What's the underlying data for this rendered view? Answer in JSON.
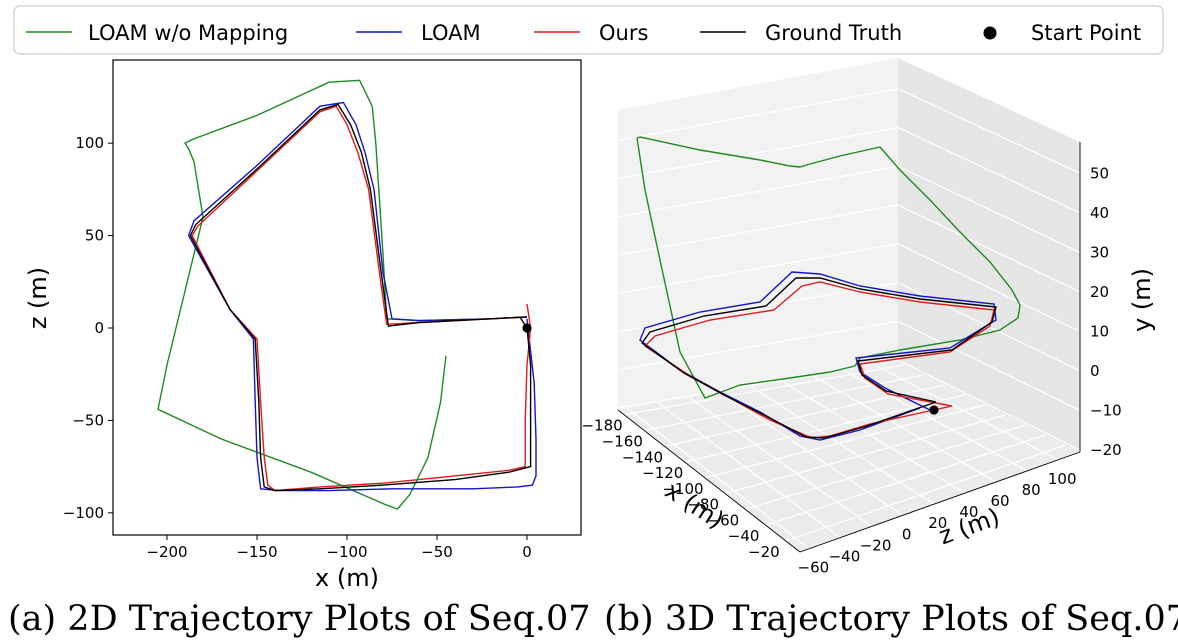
{
  "legend": [
    {
      "label": "LOAM w/o Mapping",
      "color": "#1f8a1f",
      "kind": "line"
    },
    {
      "label": "LOAM",
      "color": "#1515c8",
      "kind": "line"
    },
    {
      "label": "Ours",
      "color": "#e01b1b",
      "kind": "line"
    },
    {
      "label": "Ground Truth",
      "color": "#000000",
      "kind": "line"
    },
    {
      "label": "Start Point",
      "color": "#000000",
      "kind": "marker"
    }
  ],
  "captions": {
    "a": "(a)  2D Trajectory Plots of Seq.07",
    "b": "(b)  3D Trajectory Plots of Seq.07"
  },
  "chart_data": [
    {
      "type": "line",
      "xlabel": "x (m)",
      "ylabel": "z (m)",
      "xlim": [
        -230,
        30
      ],
      "ylim": [
        -112,
        145
      ],
      "xticks": [
        -200,
        -150,
        -100,
        -50,
        0
      ],
      "yticks": [
        -100,
        -50,
        0,
        50,
        100
      ],
      "series": [
        {
          "name": "LOAM w/o Mapping",
          "color": "#1f8a1f",
          "x": [
            -45,
            -48,
            -55,
            -65,
            -72,
            -80,
            -120,
            -170,
            -205,
            -200,
            -190,
            -180,
            -185,
            -188,
            -190,
            -186,
            -150,
            -110,
            -93,
            -86,
            -84,
            -82,
            -80,
            -78,
            -60,
            -20,
            -2
          ],
          "y": [
            -15,
            -40,
            -70,
            -90,
            -98,
            -95,
            -78,
            -60,
            -44,
            -20,
            20,
            60,
            90,
            97,
            100,
            102,
            115,
            133,
            134,
            120,
            100,
            70,
            40,
            5,
            4,
            5,
            6
          ]
        },
        {
          "name": "LOAM",
          "color": "#1515c8",
          "x": [
            0,
            4,
            5,
            5,
            3,
            -5,
            -30,
            -75,
            -110,
            -138,
            -148,
            -150,
            -151,
            -152,
            -165,
            -188,
            -185,
            -150,
            -115,
            -102,
            -95,
            -90,
            -85,
            -80,
            -75,
            -60,
            -20,
            0
          ],
          "y": [
            5,
            -30,
            -60,
            -80,
            -85,
            -86,
            -87,
            -87,
            -88,
            -88,
            -87,
            -70,
            -40,
            -6,
            10,
            50,
            58,
            88,
            120,
            122,
            110,
            95,
            75,
            30,
            5,
            4,
            5,
            6
          ]
        },
        {
          "name": "Ours",
          "color": "#e01b1b",
          "x": [
            0,
            2,
            0,
            -1,
            -1,
            -10,
            -40,
            -80,
            -115,
            -140,
            -144,
            -146,
            -148,
            -150,
            -165,
            -186,
            -183,
            -150,
            -115,
            -106,
            -100,
            -94,
            -88,
            -82,
            -78,
            -60,
            -20,
            0
          ],
          "y": [
            13,
            0,
            -20,
            -50,
            -75,
            -77,
            -80,
            -84,
            -86,
            -88,
            -85,
            -70,
            -40,
            -6,
            10,
            50,
            55,
            85,
            117,
            120,
            110,
            95,
            75,
            30,
            2,
            3,
            5,
            6
          ]
        },
        {
          "name": "Ground Truth",
          "color": "#000000",
          "x": [
            -4,
            0,
            2,
            2,
            2,
            -10,
            -40,
            -80,
            -115,
            -140,
            -146,
            -148,
            -149,
            -151,
            -165,
            -187,
            -184,
            -150,
            -115,
            -105,
            -98,
            -92,
            -87,
            -81,
            -77,
            -60,
            -20,
            0
          ],
          "y": [
            6,
            0,
            -20,
            -50,
            -75,
            -78,
            -82,
            -85,
            -87,
            -88,
            -86,
            -70,
            -40,
            -6,
            10,
            50,
            56,
            86,
            118,
            121,
            110,
            95,
            75,
            30,
            1,
            3,
            5,
            6
          ]
        }
      ],
      "start_point": {
        "x": 0,
        "y": 0
      }
    },
    {
      "type": "line",
      "xlabel": "x (m)",
      "ylabel": "y (m)",
      "zlabel": "z (m)",
      "xticks": [
        -180,
        -160,
        -140,
        -120,
        -100,
        -80,
        -60,
        -40,
        -20
      ],
      "zticks": [
        -60,
        -40,
        -20,
        0,
        20,
        40,
        60,
        80,
        100
      ],
      "yticks": [
        -20,
        -10,
        0,
        10,
        20,
        30,
        40,
        50
      ],
      "grid": true
    }
  ]
}
